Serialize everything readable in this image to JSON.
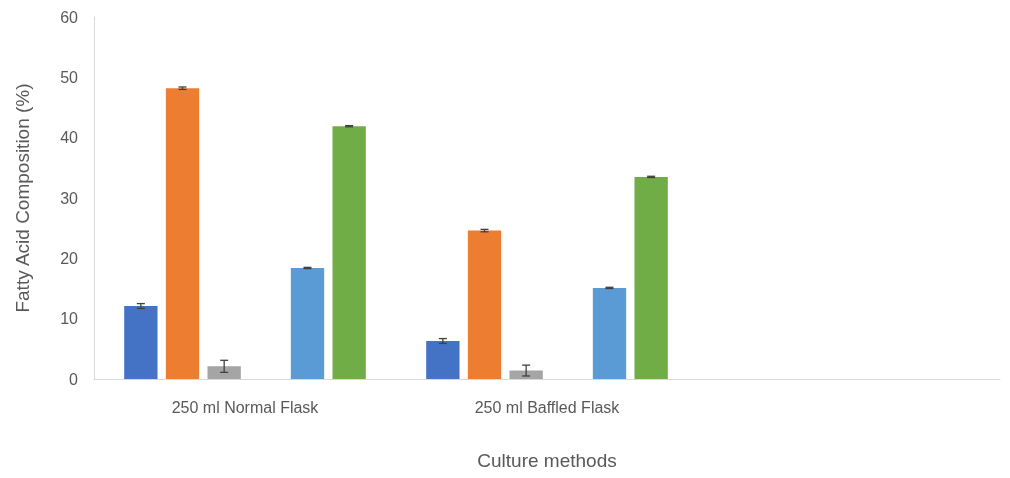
{
  "chart_data": {
    "type": "bar",
    "xlabel": "Culture methods",
    "ylabel": "Fatty Acid Composition (%)",
    "categories": [
      "250 ml Normal Flask",
      "250 ml Baffled Flask",
      null
    ],
    "series": [
      {
        "color": "#4472c4",
        "values": [
          12.1,
          6.3,
          null
        ],
        "errors": [
          0.4,
          0.4,
          null
        ]
      },
      {
        "color": "#ed7d31",
        "values": [
          48.2,
          24.6,
          null
        ],
        "errors": [
          0.2,
          0.2,
          null
        ]
      },
      {
        "color": "#a5a5a5",
        "values": [
          2.1,
          1.4,
          null
        ],
        "errors": [
          1.0,
          0.9,
          null
        ]
      },
      {
        "values": [
          null,
          null,
          null
        ]
      },
      {
        "color": "#5b9bd5",
        "values": [
          18.4,
          15.1,
          null
        ],
        "errors": [
          0.1,
          0.1,
          null
        ]
      },
      {
        "color": "#70ad47",
        "values": [
          41.9,
          33.5,
          null
        ],
        "errors": [
          0.1,
          0.1,
          null
        ]
      }
    ],
    "ylim": [
      0,
      60
    ],
    "yticks": [
      0,
      10,
      20,
      30,
      40,
      50,
      60
    ],
    "grid": false
  }
}
